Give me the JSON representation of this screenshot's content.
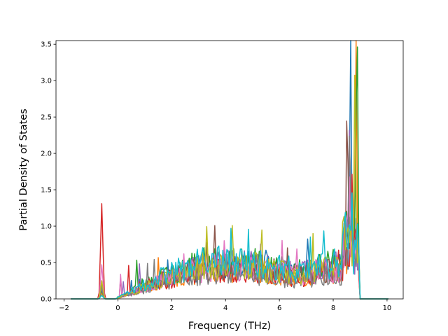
{
  "chart_data": {
    "type": "line",
    "title": "",
    "xlabel": "Frequency (THz)",
    "ylabel": "Partial Density of States",
    "xlim": [
      -2.3,
      10.6
    ],
    "ylim": [
      0.0,
      3.55
    ],
    "xticks": [
      -2,
      0,
      2,
      4,
      6,
      8,
      10
    ],
    "xtick_labels": [
      "−2",
      "0",
      "2",
      "4",
      "6",
      "8",
      "10"
    ],
    "yticks": [
      0.0,
      0.5,
      1.0,
      1.5,
      2.0,
      2.5,
      3.0,
      3.5
    ],
    "ytick_labels": [
      "0.0",
      "0.5",
      "1.0",
      "1.5",
      "2.0",
      "2.5",
      "3.0",
      "3.5"
    ],
    "grid": false,
    "legend": "none",
    "x_range": [
      -1.75,
      10.05
    ],
    "series": [
      {
        "color": "#1f77b4",
        "peak_low": 0.1,
        "level": 0.48,
        "tall_x": 8.65,
        "tall_y": 3.05,
        "seed": 11
      },
      {
        "color": "#ff7f0e",
        "peak_low": 0.08,
        "level": 0.42,
        "tall_x": 8.85,
        "tall_y": 3.02,
        "seed": 23
      },
      {
        "color": "#2ca02c",
        "peak_low": 0.12,
        "level": 0.52,
        "tall_x": 8.88,
        "tall_y": 3.36,
        "seed": 37
      },
      {
        "color": "#d62728",
        "peak_low": 1.31,
        "level": 0.4,
        "tall_x": 8.7,
        "tall_y": 1.18,
        "seed": 41
      },
      {
        "color": "#9467bd",
        "peak_low": 0.15,
        "level": 0.5,
        "tall_x": 8.6,
        "tall_y": 1.6,
        "seed": 53
      },
      {
        "color": "#8c564b",
        "peak_low": 0.2,
        "level": 0.46,
        "tall_x": 8.52,
        "tall_y": 2.78,
        "seed": 67
      },
      {
        "color": "#e377c2",
        "peak_low": 0.47,
        "level": 0.44,
        "tall_x": 8.58,
        "tall_y": 1.3,
        "seed": 79
      },
      {
        "color": "#7f7f7f",
        "peak_low": 0.18,
        "level": 0.36,
        "tall_x": 8.62,
        "tall_y": 2.0,
        "seed": 83
      },
      {
        "color": "#bcbd22",
        "peak_low": 0.25,
        "level": 0.47,
        "tall_x": 8.8,
        "tall_y": 2.4,
        "seed": 97
      },
      {
        "color": "#17becf",
        "peak_low": 0.05,
        "level": 0.55,
        "tall_x": 8.68,
        "tall_y": 1.1,
        "seed": 101
      }
    ]
  }
}
